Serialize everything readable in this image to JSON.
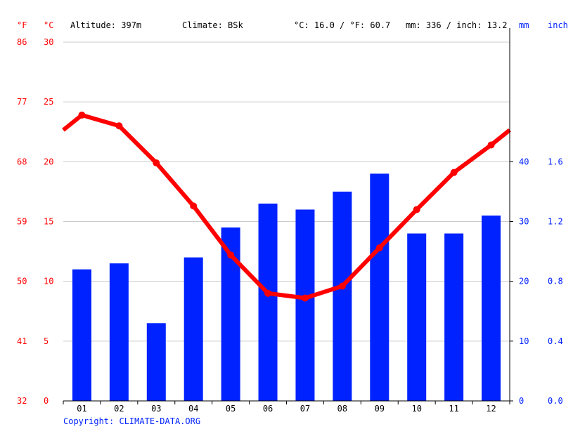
{
  "header": {
    "altitude": "Altitude: 397m",
    "climate": "Climate: BSk",
    "avg_temp": "°C: 16.0 / °F: 60.7",
    "precip": "mm: 336 / inch: 13.2"
  },
  "units": {
    "f": "°F",
    "c": "°C",
    "mm": "mm",
    "inch": "inch"
  },
  "copyright": "Copyright: CLIMATE-DATA.ORG",
  "colors": {
    "temperature": "#ff0000",
    "precipitation": "#0022ff",
    "grid": "#cccccc"
  },
  "chart_data": {
    "type": "bar",
    "categories": [
      "01",
      "02",
      "03",
      "04",
      "05",
      "06",
      "07",
      "08",
      "09",
      "10",
      "11",
      "12"
    ],
    "series": [
      {
        "type": "bar",
        "axis": "right",
        "unit": "mm",
        "values": [
          22,
          23,
          13,
          24,
          29,
          33,
          32,
          35,
          38,
          28,
          28,
          31
        ]
      },
      {
        "type": "line",
        "axis": "left",
        "unit": "°C",
        "values": [
          23.9,
          23.0,
          19.9,
          16.3,
          12.2,
          9.0,
          8.6,
          9.6,
          12.8,
          16.0,
          19.1,
          21.4
        ]
      }
    ],
    "y_left_c": {
      "ticks": [
        "0",
        "5",
        "10",
        "15",
        "20",
        "25",
        "30"
      ],
      "ylim": [
        0,
        30
      ]
    },
    "y_left_f": {
      "ticks": [
        "32",
        "41",
        "50",
        "59",
        "68",
        "77",
        "86"
      ]
    },
    "y_right_mm": {
      "ticks": [
        "0",
        "10",
        "20",
        "30",
        "40"
      ],
      "ylim": [
        0,
        60
      ]
    },
    "y_right_inch": {
      "ticks": [
        "0.0",
        "0.4",
        "0.8",
        "1.2",
        "1.6"
      ]
    },
    "grid": true
  }
}
